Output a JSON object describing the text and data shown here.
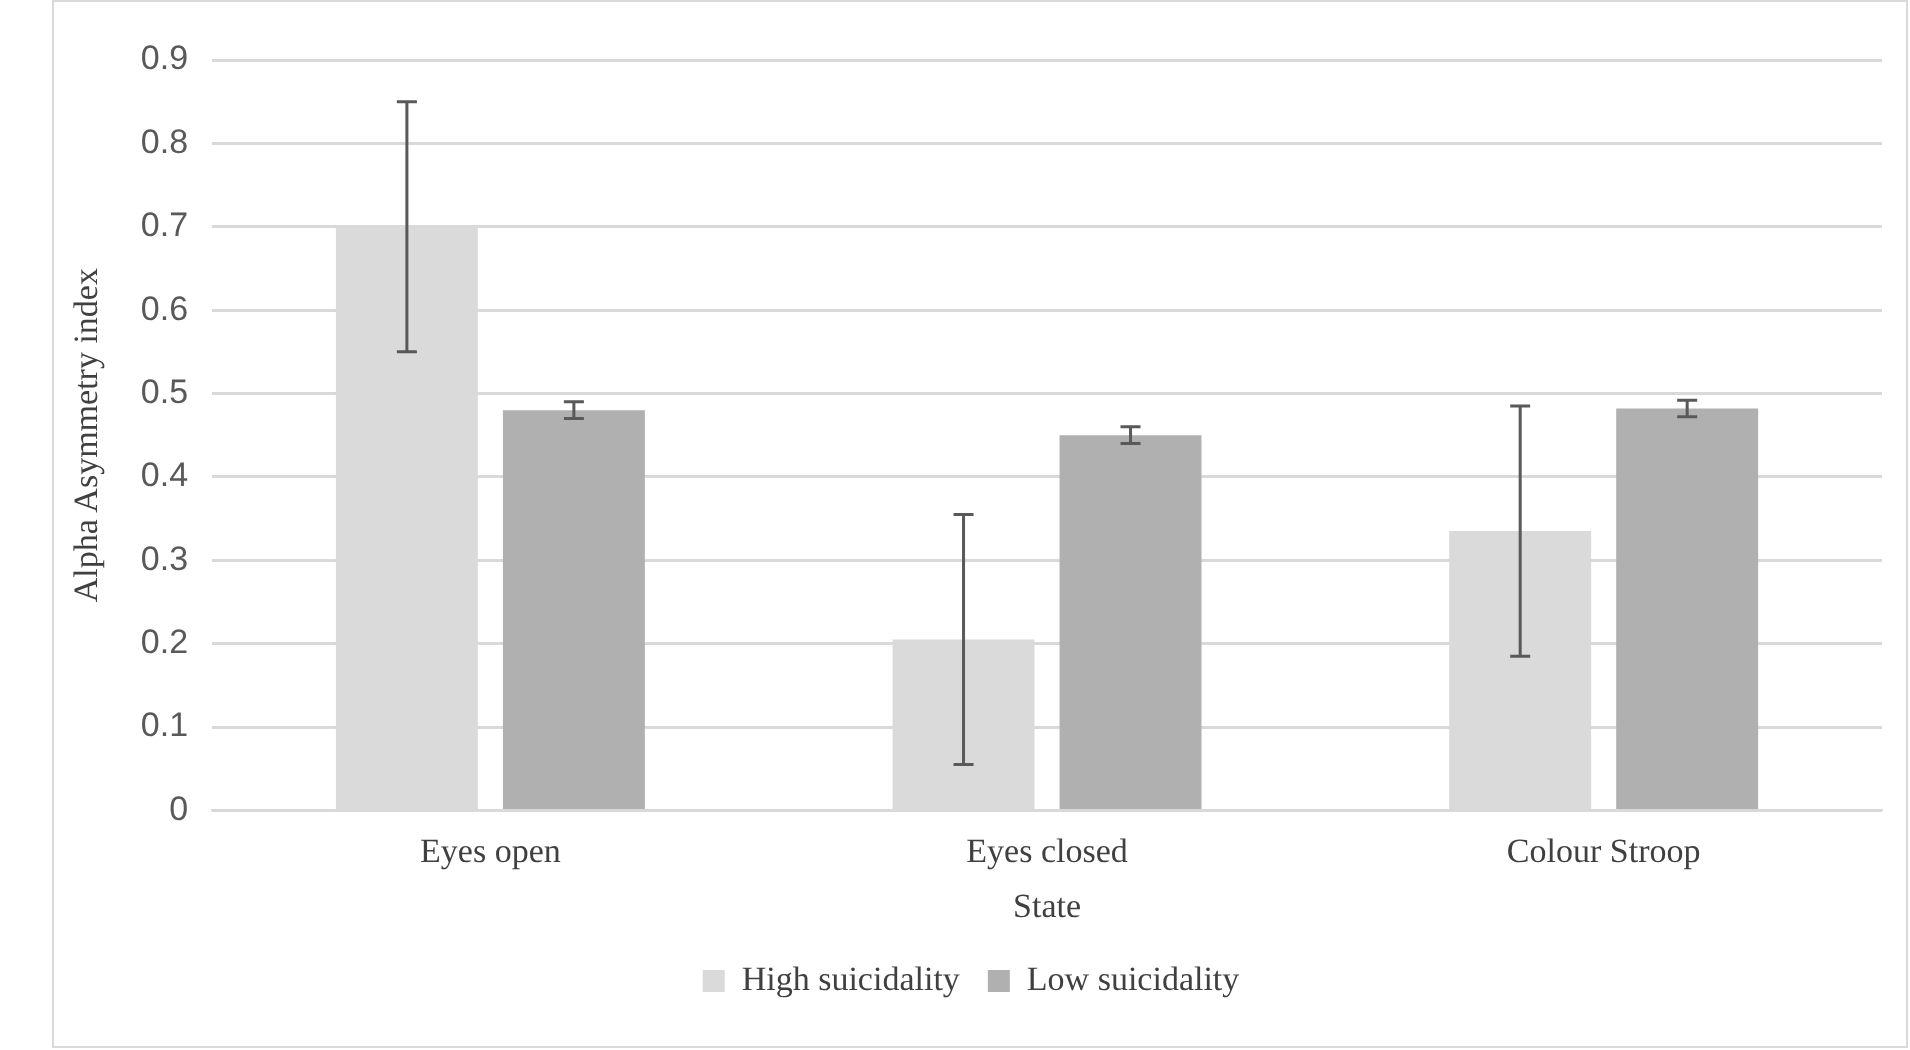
{
  "chart_data": {
    "type": "bar",
    "xlabel": "State",
    "ylabel": "Alpha Asymmetry index",
    "categories": [
      "Eyes open",
      "Eyes closed",
      "Colour Stroop"
    ],
    "series": [
      {
        "name": "High suicidality",
        "color": "#dadada",
        "values": [
          0.7,
          0.205,
          0.335
        ],
        "errors": [
          0.15,
          0.15,
          0.15
        ]
      },
      {
        "name": "Low suicidality",
        "color": "#b0b0b0",
        "values": [
          0.48,
          0.45,
          0.482
        ],
        "errors": [
          0.01,
          0.01,
          0.01
        ]
      }
    ],
    "ylim": [
      0,
      0.9
    ],
    "yticks": [
      0,
      0.1,
      0.2,
      0.3,
      0.4,
      0.5,
      0.6,
      0.7,
      0.8,
      0.9
    ],
    "grid": "y",
    "legend": "bottom"
  }
}
